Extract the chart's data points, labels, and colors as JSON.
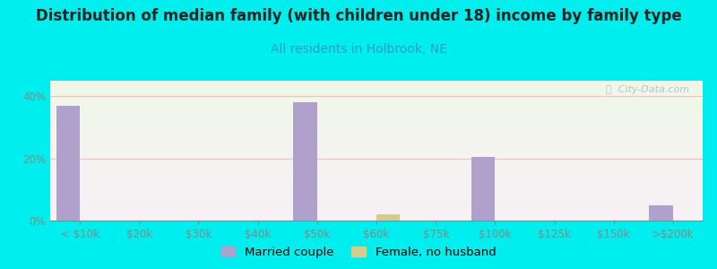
{
  "title": "Distribution of median family (with children under 18) income by family type",
  "subtitle": "All residents in Holbrook, NE",
  "categories": [
    "< $10k",
    "$20k",
    "$30k",
    "$40k",
    "$50k",
    "$60k",
    "$75k",
    "$100k",
    "$125k",
    "$150k",
    ">$200k"
  ],
  "married_couple": [
    37.0,
    0,
    0,
    0,
    38.0,
    0,
    0,
    20.5,
    0,
    0,
    5.0
  ],
  "female_no_husband": [
    0,
    0,
    0,
    0,
    0,
    2.0,
    0,
    0,
    0,
    0,
    0
  ],
  "bar_width": 0.4,
  "married_color": "#b0a0cc",
  "female_color": "#d4cc88",
  "background_color": "#00eeee",
  "title_color": "#222222",
  "subtitle_color": "#3399cc",
  "axis_color": "#888888",
  "grid_color": "#f0c0d0",
  "ylim": [
    0,
    45
  ],
  "yticks": [
    0,
    20,
    40
  ],
  "ytick_labels": [
    "0%",
    "20%",
    "40%"
  ],
  "title_fontsize": 12,
  "subtitle_fontsize": 10,
  "tick_fontsize": 8.5,
  "legend_fontsize": 9.5,
  "watermark_text": "ⓘ  City-Data.com"
}
